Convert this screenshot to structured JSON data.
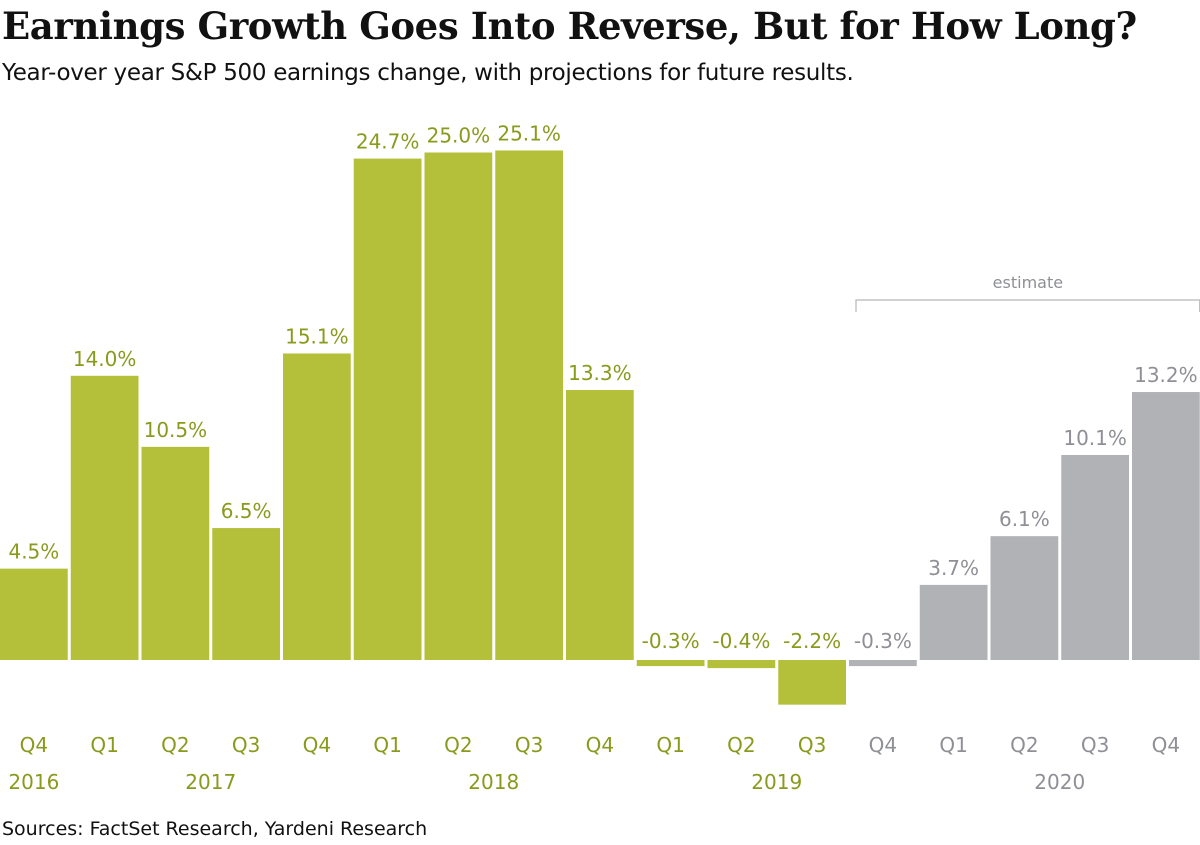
{
  "title": "Earnings Growth Goes Into Reverse, But for How Long?",
  "subtitle": "Year-over year S&P 500 earnings change, with projections for future results.",
  "source": "Sources: FactSet Research, Yardeni Research",
  "colors": {
    "actual": "#b5c03a",
    "estimate": "#b1b2b6",
    "actual_label": "#8a9a1c",
    "estimate_label": "#8f9096",
    "bracket": "#b5b6ba"
  },
  "chart_data": {
    "type": "bar",
    "unit": "%",
    "categories": [
      "Q4",
      "Q1",
      "Q2",
      "Q3",
      "Q4",
      "Q1",
      "Q2",
      "Q3",
      "Q4",
      "Q1",
      "Q2",
      "Q3",
      "Q4",
      "Q1",
      "Q2",
      "Q3",
      "Q4"
    ],
    "values": [
      4.5,
      14.0,
      10.5,
      6.5,
      15.1,
      24.7,
      25.0,
      25.1,
      13.3,
      -0.3,
      -0.4,
      -2.2,
      -0.3,
      3.7,
      6.1,
      10.1,
      13.2
    ],
    "value_labels": [
      "4.5%",
      "14.0%",
      "10.5%",
      "6.5%",
      "15.1%",
      "24.7%",
      "25.0%",
      "25.1%",
      "13.3%",
      "-0.3%",
      "-0.4%",
      "-2.2%",
      "-0.3%",
      "3.7%",
      "6.1%",
      "10.1%",
      "13.2%"
    ],
    "is_estimate": [
      false,
      false,
      false,
      false,
      false,
      false,
      false,
      false,
      false,
      false,
      false,
      false,
      true,
      true,
      true,
      true,
      true
    ],
    "years": [
      {
        "label": "2016",
        "first_index": 0,
        "last_index": 0,
        "estimate": false
      },
      {
        "label": "2017",
        "first_index": 1,
        "last_index": 4,
        "estimate": false
      },
      {
        "label": "2018",
        "first_index": 5,
        "last_index": 8,
        "estimate": false
      },
      {
        "label": "2019",
        "first_index": 9,
        "last_index": 12,
        "estimate": false
      },
      {
        "label": "2020",
        "first_index": 13,
        "last_index": 16,
        "estimate": true
      }
    ],
    "annotation": {
      "text": "estimate",
      "first_index": 12,
      "last_index": 16
    },
    "ylim": [
      -3,
      26
    ],
    "grid": false,
    "legend": "none"
  }
}
